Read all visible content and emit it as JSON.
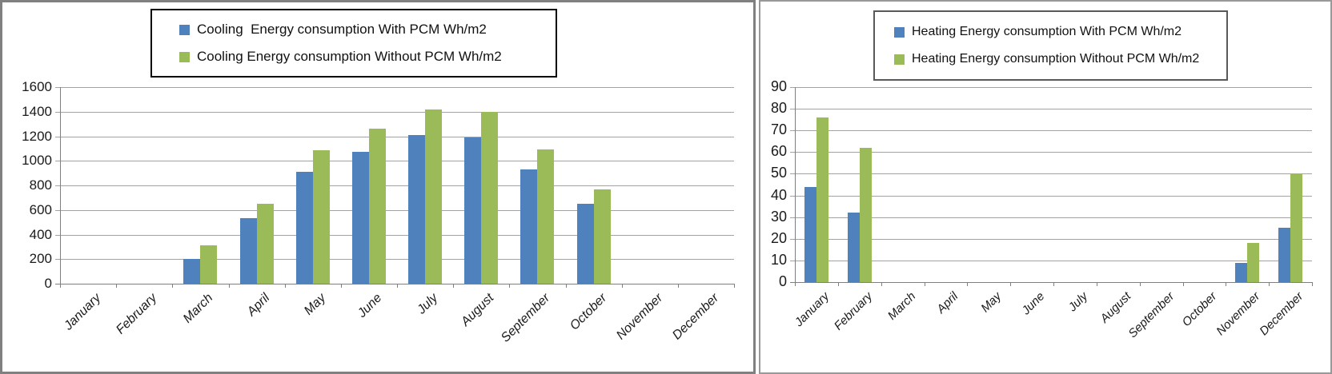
{
  "chart_data": [
    {
      "type": "bar",
      "title": "",
      "xlabel": "",
      "ylabel": "",
      "categories": [
        "January",
        "February",
        "March",
        "April",
        "May",
        "June",
        "July",
        "August",
        "September",
        "October",
        "November",
        "December"
      ],
      "series": [
        {
          "name": "Cooling  Energy consumption With PCM Wh/m2",
          "color": "#4F81BD",
          "values": [
            0,
            0,
            200,
            535,
            910,
            1075,
            1210,
            1190,
            930,
            650,
            0,
            0
          ]
        },
        {
          "name": "Cooling Energy consumption Without PCM Wh/m2",
          "color": "#9BBB59",
          "values": [
            0,
            0,
            315,
            650,
            1085,
            1265,
            1420,
            1400,
            1095,
            765,
            0,
            0
          ]
        }
      ],
      "ylim": [
        0,
        1600
      ],
      "ytick_step": 200,
      "grid": true,
      "legend_position": "top-center"
    },
    {
      "type": "bar",
      "title": "",
      "xlabel": "",
      "ylabel": "",
      "categories": [
        "January",
        "February",
        "March",
        "April",
        "May",
        "June",
        "July",
        "August",
        "September",
        "October",
        "November",
        "December"
      ],
      "series": [
        {
          "name": "Heating Energy consumption With PCM Wh/m2",
          "color": "#4F81BD",
          "values": [
            44,
            32,
            0,
            0,
            0,
            0,
            0,
            0,
            0,
            0,
            9,
            25
          ]
        },
        {
          "name": "Heating Energy consumption Without PCM Wh/m2",
          "color": "#9BBB59",
          "values": [
            76,
            62,
            0,
            0,
            0,
            0,
            0,
            0,
            0,
            0,
            18,
            50
          ]
        }
      ],
      "ylim": [
        0,
        90
      ],
      "ytick_step": 10,
      "grid": true,
      "legend_position": "top-center"
    }
  ]
}
